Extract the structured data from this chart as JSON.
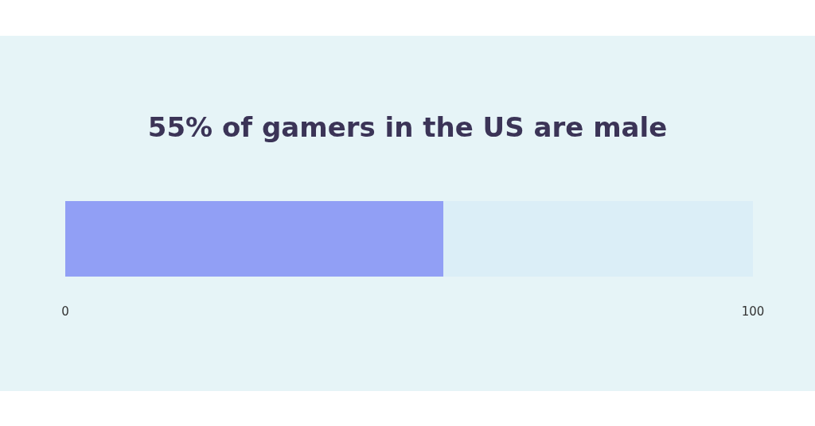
{
  "chart_data": {
    "type": "bar",
    "title": "55% of gamers in the US are male",
    "orientation": "horizontal",
    "stacked": true,
    "categories": [
      null
    ],
    "series": [
      {
        "color": "#919ff5",
        "values": [
          55
        ]
      },
      {
        "color": "#dbeef7",
        "values": [
          45
        ]
      }
    ],
    "xlim": [
      0,
      100
    ],
    "xticks": [
      0,
      100
    ]
  }
}
